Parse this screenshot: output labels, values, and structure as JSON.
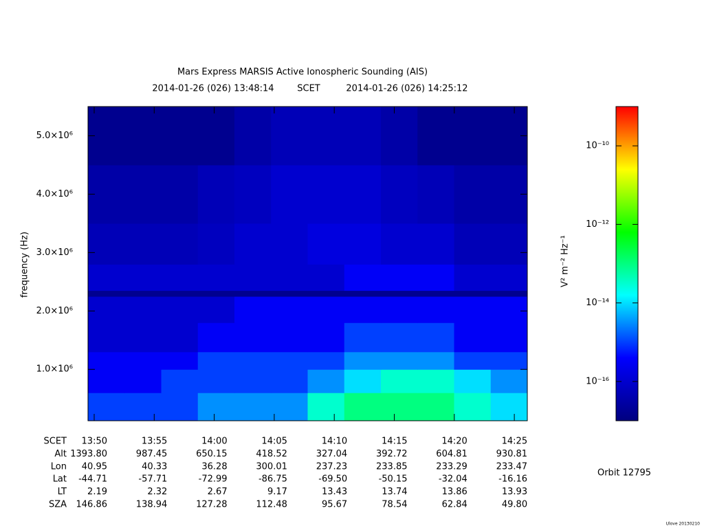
{
  "chart_data": {
    "type": "spectrogram",
    "title": "Mars Express MARSIS Active Ionospheric Sounding (AIS)",
    "subtitle": {
      "start": "2014-01-26 (026) 13:48:14",
      "frame": "SCET",
      "end": "2014-01-26 (026) 14:25:12"
    },
    "ylabel": "frequency (Hz)",
    "ylim": [
      120000,
      5500000
    ],
    "yticks": [
      {
        "value": 1000000,
        "label": "1.0×10⁶"
      },
      {
        "value": 2000000,
        "label": "2.0×10⁶"
      },
      {
        "value": 3000000,
        "label": "3.0×10⁶"
      },
      {
        "value": 4000000,
        "label": "4.0×10⁶"
      },
      {
        "value": 5000000,
        "label": "5.0×10⁶"
      }
    ],
    "y_bins": [
      120000,
      600000,
      1000000,
      1300000,
      1800000,
      2250000,
      2350000,
      2800000,
      3500000,
      4500000,
      5500000
    ],
    "z": [
      [
        1e-15,
        1e-15,
        1e-15,
        3.2e-15,
        3.2e-15,
        3.2e-15,
        3.2e-14,
        1e-13,
        1e-13,
        1e-13,
        3.2e-14,
        1e-14
      ],
      [
        3.2e-16,
        3.2e-16,
        1e-15,
        1e-15,
        1e-15,
        1e-15,
        3.2e-15,
        1e-14,
        3.2e-14,
        3.2e-14,
        1e-14,
        3.2e-15
      ],
      [
        3.2e-16,
        3.2e-16,
        3.2e-16,
        1e-15,
        1e-15,
        1e-15,
        1e-15,
        3.2e-15,
        3.2e-15,
        3.2e-15,
        1e-15,
        1e-15
      ],
      [
        1e-16,
        1e-16,
        1e-16,
        3.2e-16,
        3.2e-16,
        3.2e-16,
        3.2e-16,
        1e-15,
        1e-15,
        1e-15,
        3.2e-16,
        3.2e-16
      ],
      [
        1e-16,
        1e-16,
        1e-16,
        1e-16,
        3.2e-16,
        3.2e-16,
        3.2e-16,
        3.2e-16,
        3.2e-16,
        3.2e-16,
        3.2e-16,
        3.2e-16
      ],
      [
        1.6e-17,
        1.6e-17,
        1.6e-17,
        1.6e-17,
        1.6e-17,
        1.6e-17,
        1.6e-17,
        1.6e-17,
        1.6e-17,
        1.6e-17,
        1.6e-17,
        1.6e-17
      ],
      [
        1e-16,
        1e-16,
        1e-16,
        1e-16,
        1e-16,
        1e-16,
        1e-16,
        3.2e-16,
        3.2e-16,
        3.2e-16,
        1e-16,
        1e-16
      ],
      [
        5e-17,
        5e-17,
        5e-17,
        6.3e-17,
        1e-16,
        1e-16,
        1.6e-16,
        1.6e-16,
        1e-16,
        1e-16,
        5e-17,
        5e-17
      ],
      [
        3.2e-17,
        3.2e-17,
        3.2e-17,
        5e-17,
        6.3e-17,
        1e-16,
        1e-16,
        1e-16,
        6.3e-17,
        5e-17,
        3.2e-17,
        3.2e-17
      ],
      [
        1.6e-17,
        1.6e-17,
        1.6e-17,
        1.6e-17,
        3.2e-17,
        5e-17,
        5e-17,
        5e-17,
        3.2e-17,
        1.6e-17,
        1.6e-17,
        1.6e-17
      ]
    ],
    "colorbar": {
      "label": "V² m⁻² Hz⁻¹",
      "log": true,
      "lim": [
        1e-17,
        1e-09
      ],
      "ticks": [
        {
          "value": 1e-10,
          "label": "10⁻¹⁰"
        },
        {
          "value": 1e-12,
          "label": "10⁻¹²"
        },
        {
          "value": 1e-14,
          "label": "10⁻¹⁴"
        },
        {
          "value": 1e-16,
          "label": "10⁻¹⁶"
        }
      ],
      "colormap": [
        "#00007f",
        "#0000ff",
        "#00ffff",
        "#00ff00",
        "#ffff00",
        "#ff0000"
      ]
    }
  },
  "ephemeris": {
    "labels": [
      "SCET",
      "Alt",
      "Lon",
      "Lat",
      "LT",
      "SZA"
    ],
    "rows": [
      [
        "13:50",
        "13:55",
        "14:00",
        "14:05",
        "14:10",
        "14:15",
        "14:20",
        "14:25"
      ],
      [
        "1393.80",
        "987.45",
        "650.15",
        "418.52",
        "327.04",
        "392.72",
        "604.81",
        "930.81"
      ],
      [
        "40.95",
        "40.33",
        "36.28",
        "300.01",
        "237.23",
        "233.85",
        "233.29",
        "233.47"
      ],
      [
        "-44.71",
        "-57.71",
        "-72.99",
        "-86.75",
        "-69.50",
        "-50.15",
        "-32.04",
        "-16.16"
      ],
      [
        "2.19",
        "2.32",
        "2.67",
        "9.17",
        "13.43",
        "13.74",
        "13.86",
        "13.93"
      ],
      [
        "146.86",
        "138.94",
        "127.28",
        "112.48",
        "95.67",
        "78.54",
        "62.84",
        "49.80"
      ]
    ]
  },
  "orbit": "Orbit 12795",
  "footer": "Ulove 20130210"
}
